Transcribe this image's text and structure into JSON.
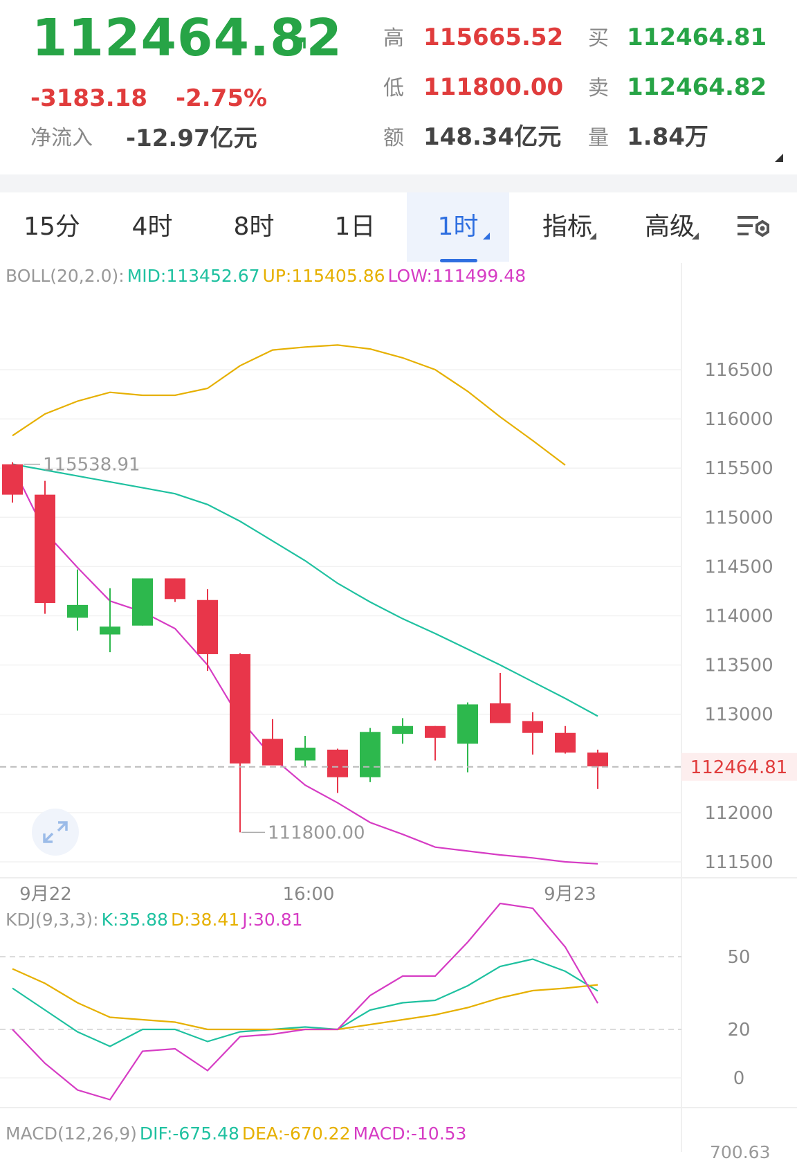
{
  "header": {
    "price": "112464.82",
    "change": "-3183.18",
    "change_pct": "-2.75%",
    "net_inflow_label": "净流入",
    "net_inflow_value": "-12.97亿元",
    "stats": [
      {
        "label": "高",
        "value": "115665.52",
        "color": "#e03c3c"
      },
      {
        "label": "买",
        "value": "112464.81",
        "color": "#27a446"
      },
      {
        "label": "低",
        "value": "111800.00",
        "color": "#e03c3c"
      },
      {
        "label": "卖",
        "value": "112464.82",
        "color": "#27a446"
      },
      {
        "label": "额",
        "value": "148.34亿元",
        "color": "#444444"
      },
      {
        "label": "量",
        "value": "1.84万",
        "color": "#444444"
      }
    ],
    "price_color": "#27a446"
  },
  "tabs": [
    {
      "label": "15分",
      "active": false,
      "dropdown": false
    },
    {
      "label": "4时",
      "active": false,
      "dropdown": false
    },
    {
      "label": "8时",
      "active": false,
      "dropdown": false
    },
    {
      "label": "1日",
      "active": false,
      "dropdown": false
    },
    {
      "label": "1时",
      "active": true,
      "dropdown": true
    },
    {
      "label": "指标",
      "active": false,
      "dropdown": true
    },
    {
      "label": "高级",
      "active": false,
      "dropdown": true
    }
  ],
  "settings_icon": "chart-settings-icon",
  "boll": {
    "prefix": "BOLL(20,2.0):",
    "mid": "MID:113452.67",
    "up": "UP:115405.86",
    "low": "LOW:111499.48",
    "colors": {
      "mid": "#1fc1a0",
      "up": "#e6b000",
      "low": "#d63cc4"
    }
  },
  "kdj": {
    "prefix": "KDJ(9,3,3):",
    "k": "K:35.88",
    "d": "D:38.41",
    "j": "J:30.81"
  },
  "macd": {
    "prefix": "MACD(12,26,9)",
    "dif": "DIF:-675.48",
    "dea": "DEA:-670.22",
    "macd": "MACD:-10.53",
    "axis_partial": "700.63"
  },
  "chart_data": [
    {
      "type": "candlestick",
      "yticks": [
        116500,
        116000,
        115500,
        115000,
        114500,
        114000,
        113500,
        113000,
        112000,
        111500
      ],
      "ylim": [
        111350,
        117000
      ],
      "x_ticks": [
        "9月22",
        "16:00",
        "9月23"
      ],
      "current_price_label": "112464.81",
      "current_price": 112464.81,
      "max_annotation": "115538.91",
      "max_value": 115538.91,
      "min_annotation": "111800.00",
      "min_value": 111800.0,
      "candles": [
        {
          "o": 115538.91,
          "h": 115560,
          "l": 115150,
          "c": 115230
        },
        {
          "o": 115230,
          "h": 115370,
          "l": 114020,
          "c": 114130
        },
        {
          "o": 113980,
          "h": 114470,
          "l": 113850,
          "c": 114110
        },
        {
          "o": 113810,
          "h": 114280,
          "l": 113630,
          "c": 113890
        },
        {
          "o": 113900,
          "h": 114380,
          "l": 113900,
          "c": 114380
        },
        {
          "o": 114380,
          "h": 114380,
          "l": 114140,
          "c": 114170
        },
        {
          "o": 114160,
          "h": 114270,
          "l": 113440,
          "c": 113610
        },
        {
          "o": 113610,
          "h": 113620,
          "l": 111800.0,
          "c": 112500
        },
        {
          "o": 112750,
          "h": 112950,
          "l": 112490,
          "c": 112480
        },
        {
          "o": 112530,
          "h": 112780,
          "l": 112460,
          "c": 112660
        },
        {
          "o": 112640,
          "h": 112650,
          "l": 112200,
          "c": 112360
        },
        {
          "o": 112360,
          "h": 112860,
          "l": 112310,
          "c": 112820
        },
        {
          "o": 112800,
          "h": 112960,
          "l": 112700,
          "c": 112880
        },
        {
          "o": 112880,
          "h": 112880,
          "l": 112530,
          "c": 112760
        },
        {
          "o": 112700,
          "h": 113120,
          "l": 112410,
          "c": 113100
        },
        {
          "o": 113110,
          "h": 113420,
          "l": 112920,
          "c": 112910
        },
        {
          "o": 112930,
          "h": 113020,
          "l": 112590,
          "c": 112810
        },
        {
          "o": 112810,
          "h": 112880,
          "l": 112600,
          "c": 112610
        },
        {
          "o": 112610,
          "h": 112640,
          "l": 112240,
          "c": 112470
        }
      ],
      "boll_up": [
        115830,
        116050,
        116180,
        116270,
        116240,
        116240,
        116310,
        116540,
        116700,
        116730,
        116750,
        116710,
        116620,
        116500,
        116280,
        116020,
        115780,
        115530,
        null
      ],
      "boll_mid": [
        115540,
        115480,
        115420,
        115360,
        115300,
        115240,
        115130,
        114960,
        114760,
        114560,
        114330,
        114140,
        113970,
        113820,
        113660,
        113500,
        113330,
        113160,
        112980
      ],
      "boll_low": [
        115520,
        114850,
        114490,
        114150,
        114040,
        113870,
        113500,
        112950,
        112560,
        112280,
        112100,
        111900,
        111780,
        111650,
        111610,
        111570,
        111540,
        111500,
        111480
      ]
    },
    {
      "type": "line",
      "name": "KDJ",
      "yticks": [
        50,
        20,
        0
      ],
      "ylim": [
        -12,
        85
      ],
      "series": [
        {
          "name": "K",
          "color": "#1fc1a0",
          "values": [
            37,
            28,
            19,
            13,
            20,
            20,
            15,
            19,
            20,
            21,
            20,
            28,
            31,
            32,
            38,
            46,
            49,
            44,
            35.88
          ]
        },
        {
          "name": "D",
          "color": "#e6b000",
          "values": [
            45,
            39,
            31,
            25,
            24,
            23,
            20,
            20,
            20,
            20,
            20,
            22,
            24,
            26,
            29,
            33,
            36,
            37,
            38.41
          ]
        },
        {
          "name": "J",
          "color": "#d63cc4",
          "values": [
            20,
            6,
            -5,
            -9,
            11,
            12,
            3,
            17,
            18,
            20,
            20,
            34,
            42,
            42,
            56,
            72,
            70,
            54,
            30.81
          ]
        }
      ]
    }
  ]
}
